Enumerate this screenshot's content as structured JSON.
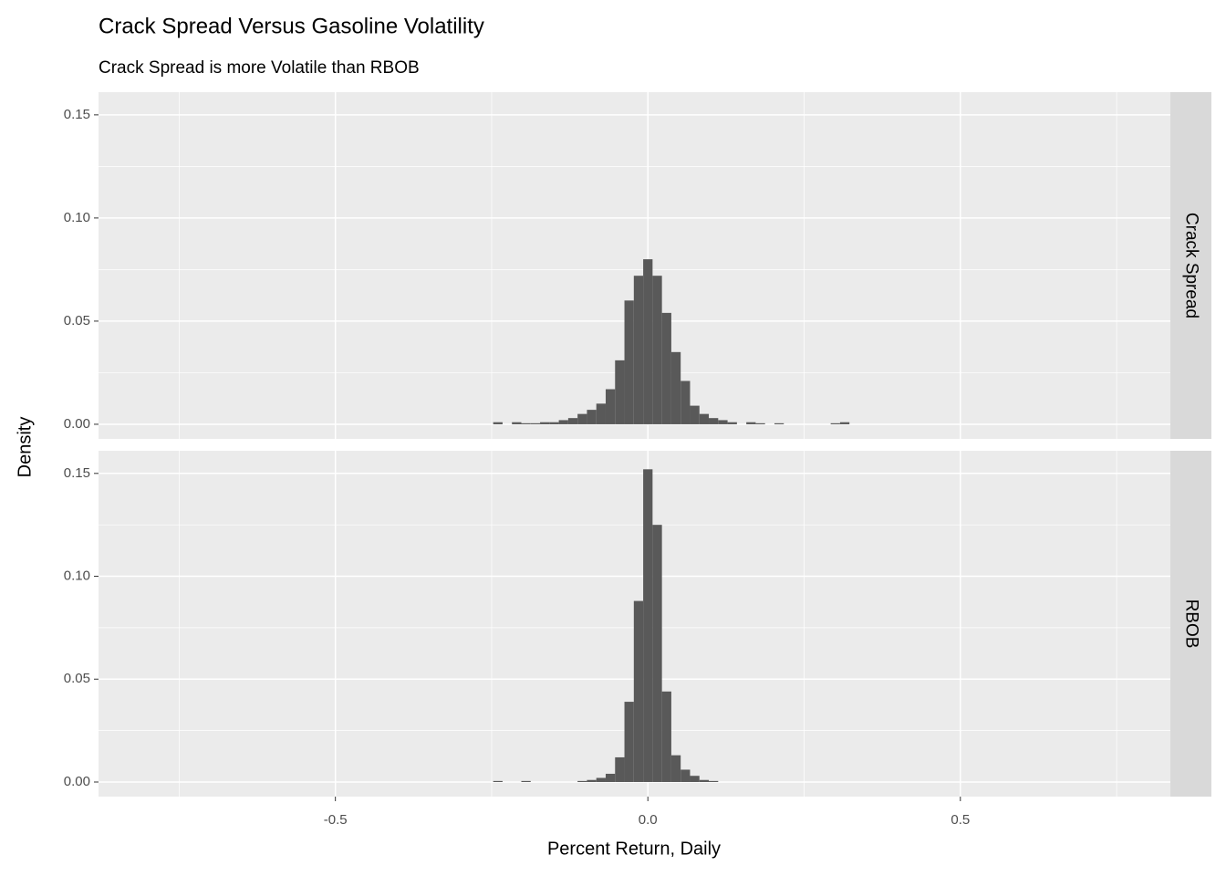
{
  "chart_data": {
    "type": "histogram",
    "title": "Crack Spread Versus Gasoline Volatility",
    "subtitle": "Crack Spread is more Volatile than RBOB",
    "xlabel": "Percent Return, Daily",
    "ylabel": "Density",
    "color": "#595959",
    "grid": true,
    "xlim": [
      -0.879,
      0.836
    ],
    "xticks": [
      -0.5,
      {
        "value": 0,
        "label": "0.0"
      },
      0.5
    ],
    "ylim": [
      -0.0071,
      0.161
    ],
    "yticks": [
      {
        "value": 0,
        "label": "0.00"
      },
      {
        "value": 0.05,
        "label": "0.05"
      },
      {
        "value": 0.1,
        "label": "0.10"
      },
      {
        "value": 0.15,
        "label": "0.15"
      }
    ],
    "panels": [
      {
        "name": "Crack Spread",
        "bins": [
          -0.2475,
          -0.2325,
          -0.2175,
          -0.2025,
          -0.1875,
          -0.1725,
          -0.1575,
          -0.1425,
          -0.1275,
          -0.1125,
          -0.0975,
          -0.0825,
          -0.0675,
          -0.0525,
          -0.0375,
          -0.0225,
          -0.0075,
          0.0075,
          0.0225,
          0.0375,
          0.0525,
          0.0675,
          0.0825,
          0.0975,
          0.1125,
          0.1275,
          0.1425,
          0.1575,
          0.1725,
          0.1875,
          0.2025,
          0.2175,
          0.2325,
          0.2475,
          0.2625,
          0.2775,
          0.2925,
          0.3075,
          0.3225
        ],
        "values": [
          0.001,
          0,
          0.001,
          0.0005,
          0.0005,
          0.001,
          0.001,
          0.002,
          0.003,
          0.005,
          0.007,
          0.01,
          0.017,
          0.031,
          0.06,
          0.072,
          0.08,
          0.072,
          0.054,
          0.035,
          0.021,
          0.009,
          0.005,
          0.003,
          0.002,
          0.001,
          0,
          0.001,
          0.0005,
          0,
          0.0005,
          0,
          0,
          0,
          0,
          0,
          0.0005,
          0.001
        ]
      },
      {
        "name": "RBOB",
        "bins": [
          -0.2475,
          -0.2325,
          -0.2175,
          -0.2025,
          -0.1875,
          -0.1725,
          -0.1575,
          -0.1425,
          -0.1275,
          -0.1125,
          -0.0975,
          -0.0825,
          -0.0675,
          -0.0525,
          -0.0375,
          -0.0225,
          -0.0075,
          0.0075,
          0.0225,
          0.0375,
          0.0525,
          0.0675,
          0.0825,
          0.0975,
          0.1125,
          0.1275,
          0.1425,
          0.1575,
          0.1725,
          0.1875,
          0.2025,
          0.2175,
          0.2325,
          0.2475,
          0.2625,
          0.2775,
          0.2925,
          0.3075,
          0.3225
        ],
        "values": [
          0.0005,
          0,
          0,
          0.0005,
          0,
          0,
          0,
          0,
          0,
          0.0005,
          0.001,
          0.002,
          0.004,
          0.012,
          0.039,
          0.088,
          0.152,
          0.125,
          0.044,
          0.013,
          0.006,
          0.003,
          0.001,
          0.0005,
          0,
          0,
          0,
          0,
          0,
          0,
          0,
          0,
          0,
          0,
          0,
          0,
          0,
          0
        ]
      }
    ]
  }
}
